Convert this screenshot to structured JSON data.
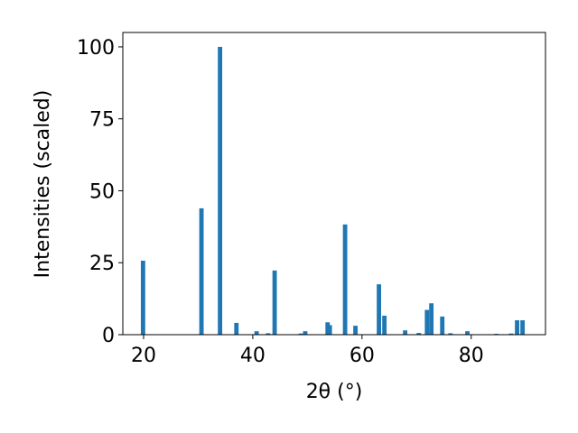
{
  "chart_data": {
    "type": "bar",
    "xlabel": "2θ (°)",
    "ylabel": "Intensities (scaled)",
    "color": "#1f77b4",
    "x": [
      19.9,
      30.6,
      34.0,
      37.0,
      40.7,
      42.8,
      44.0,
      48.8,
      49.6,
      53.7,
      54.1,
      56.9,
      58.8,
      63.1,
      64.1,
      67.9,
      70.4,
      71.9,
      72.7,
      74.7,
      76.2,
      79.3,
      84.6,
      87.3,
      88.4,
      89.4
    ],
    "values": [
      25.7,
      43.9,
      100,
      4.1,
      1.2,
      0.5,
      22.3,
      0.4,
      1.2,
      4.3,
      3.3,
      38.3,
      3.1,
      17.5,
      6.6,
      1.5,
      0.6,
      8.6,
      10.9,
      6.3,
      0.5,
      1.2,
      0.3,
      0.4,
      5,
      5
    ],
    "xlim": [
      16.2,
      93.6
    ],
    "ylim": [
      0,
      105
    ],
    "xticks": [
      20,
      40,
      60,
      80
    ],
    "yticks": [
      0,
      25,
      50,
      75,
      100
    ]
  }
}
